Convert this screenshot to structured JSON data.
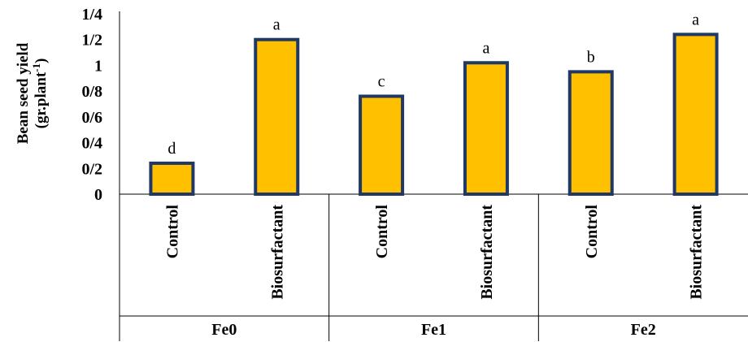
{
  "chart_data": {
    "type": "bar",
    "ylabel_line1": "Bean seed yield",
    "ylabel_line2_prefix": "(gr.plant",
    "ylabel_line2_sup": "-1",
    "ylabel_line2_suffix": ")",
    "ylim": [
      0,
      1.4
    ],
    "y_ticks": [
      {
        "value": 0,
        "label": "0"
      },
      {
        "value": 0.2,
        "label": "0/2"
      },
      {
        "value": 0.4,
        "label": "0/4"
      },
      {
        "value": 0.6,
        "label": "0/6"
      },
      {
        "value": 0.8,
        "label": "0/8"
      },
      {
        "value": 1.0,
        "label": "1"
      },
      {
        "value": 1.2,
        "label": "1/2"
      },
      {
        "value": 1.4,
        "label": "1/4"
      }
    ],
    "groups": [
      {
        "name": "Fe0",
        "bars": [
          {
            "category": "Control",
            "value": 0.24,
            "letter": "d"
          },
          {
            "category": "Biosurfactant",
            "value": 1.2,
            "letter": "a"
          }
        ]
      },
      {
        "name": "Fe1",
        "bars": [
          {
            "category": "Control",
            "value": 0.76,
            "letter": "c"
          },
          {
            "category": "Biosurfactant",
            "value": 1.02,
            "letter": "a"
          }
        ]
      },
      {
        "name": "Fe2",
        "bars": [
          {
            "category": "Control",
            "value": 0.95,
            "letter": "b"
          },
          {
            "category": "Biosurfactant",
            "value": 1.24,
            "letter": "a"
          }
        ]
      }
    ],
    "colors": {
      "bar_fill": "#FFC000",
      "bar_stroke": "#1F3864",
      "axis": "#000000"
    },
    "grid": false,
    "legend": "none"
  }
}
